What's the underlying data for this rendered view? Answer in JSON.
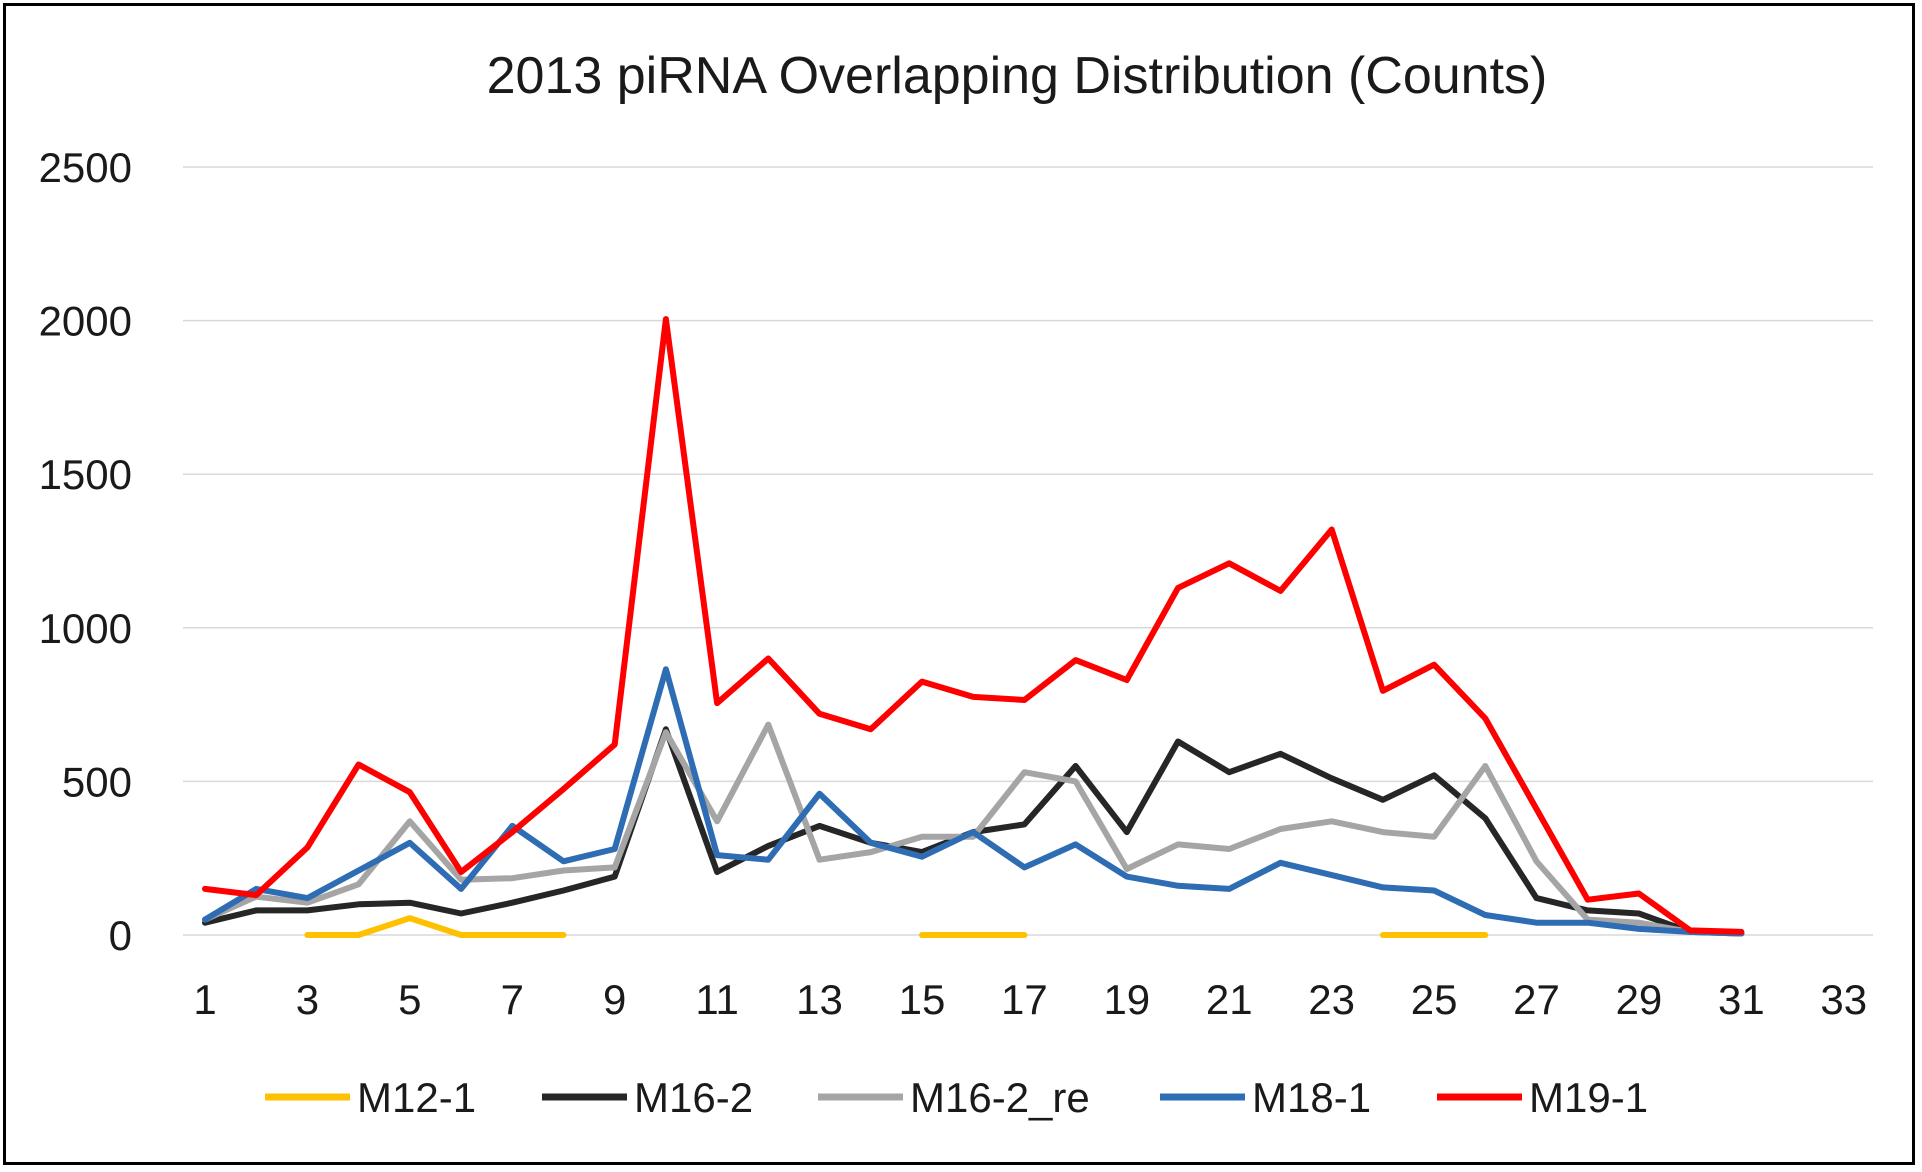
{
  "chart_data": {
    "type": "line",
    "title": "2013 piRNA Overlapping Distribution (Counts)",
    "xlabel": "",
    "ylabel": "",
    "x": [
      1,
      2,
      3,
      4,
      5,
      6,
      7,
      8,
      9,
      10,
      11,
      12,
      13,
      14,
      15,
      16,
      17,
      18,
      19,
      20,
      21,
      22,
      23,
      24,
      25,
      26,
      27,
      28,
      29,
      30,
      31
    ],
    "x_ticks": [
      1,
      3,
      5,
      7,
      9,
      11,
      13,
      15,
      17,
      19,
      21,
      23,
      25,
      27,
      29,
      31,
      33
    ],
    "xlim": [
      1,
      34
    ],
    "ylim": [
      0,
      2500
    ],
    "y_ticks": [
      0,
      500,
      1000,
      1500,
      2000,
      2500
    ],
    "grid": "horizontal",
    "legend_position": "bottom",
    "series": [
      {
        "name": "M12-1",
        "color": "#FFC000",
        "values": [
          null,
          null,
          0,
          0,
          55,
          0,
          0,
          0,
          null,
          null,
          null,
          null,
          null,
          null,
          0,
          0,
          0,
          null,
          null,
          null,
          null,
          null,
          null,
          0,
          0,
          0,
          null,
          null,
          null,
          null,
          null
        ]
      },
      {
        "name": "M16-2",
        "color": "#262626",
        "values": [
          40,
          80,
          80,
          100,
          105,
          70,
          105,
          145,
          190,
          670,
          205,
          290,
          355,
          300,
          270,
          335,
          360,
          550,
          335,
          630,
          530,
          590,
          510,
          440,
          520,
          380,
          120,
          80,
          70,
          10,
          5
        ]
      },
      {
        "name": "M16-2_re",
        "color": "#A5A5A5",
        "values": [
          50,
          125,
          105,
          165,
          370,
          180,
          185,
          210,
          220,
          660,
          370,
          685,
          245,
          270,
          320,
          320,
          530,
          500,
          215,
          295,
          280,
          345,
          370,
          335,
          320,
          550,
          240,
          50,
          40,
          10,
          5
        ]
      },
      {
        "name": "M18-1",
        "color": "#2E6DB4",
        "values": [
          50,
          150,
          120,
          210,
          300,
          150,
          355,
          240,
          280,
          865,
          260,
          245,
          460,
          300,
          255,
          335,
          220,
          295,
          190,
          160,
          150,
          235,
          195,
          155,
          145,
          65,
          40,
          40,
          20,
          10,
          5
        ]
      },
      {
        "name": "M19-1",
        "color": "#FF0000",
        "values": [
          150,
          130,
          285,
          555,
          465,
          205,
          335,
          475,
          620,
          2005,
          755,
          900,
          720,
          670,
          825,
          775,
          765,
          895,
          830,
          1130,
          1210,
          1120,
          1320,
          795,
          880,
          705,
          410,
          115,
          135,
          15,
          10
        ]
      }
    ]
  }
}
